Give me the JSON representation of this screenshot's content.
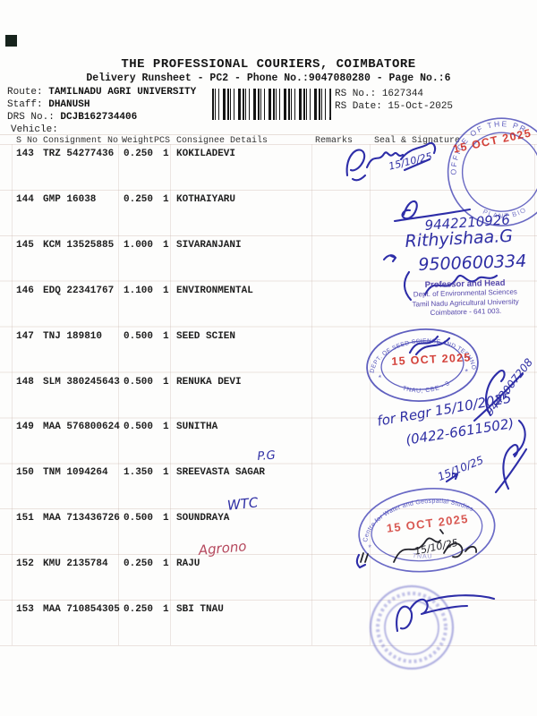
{
  "doc": {
    "title": "THE PROFESSIONAL COURIERS, COIMBATORE",
    "subtitle": "Delivery Runsheet - PC2 - Phone No.:9047080280 - Page No.:6",
    "route_label": "Route:",
    "route": "TAMILNADU AGRI UNIVERSITY",
    "staff_label": "Staff:",
    "staff": "DHANUSH",
    "drs_label": "DRS No.:",
    "drs": "DCJB162734406",
    "vehicle_label": "Vehicle:",
    "rs_no_label": "RS No.:",
    "rs_no": "1627344",
    "rs_date_label": "RS Date:",
    "rs_date": "15-Oct-2025"
  },
  "table": {
    "headers": [
      "S No",
      "Consignment No",
      "Weight",
      "PCS",
      "Consignee Details",
      "Remarks",
      "Seal & Signature"
    ],
    "rows": [
      {
        "s_no": "143",
        "consignment": "TRZ 54277436",
        "weight": "0.250",
        "pcs": "1",
        "consignee": "KOKILADEVI",
        "annotation": ""
      },
      {
        "s_no": "144",
        "consignment": "GMP 16038",
        "weight": "0.250",
        "pcs": "1",
        "consignee": "KOTHAIYARU",
        "annotation": ""
      },
      {
        "s_no": "145",
        "consignment": "KCM 13525885",
        "weight": "1.000",
        "pcs": "1",
        "consignee": "SIVARANJANI",
        "annotation": ""
      },
      {
        "s_no": "146",
        "consignment": "EDQ 22341767",
        "weight": "1.100",
        "pcs": "1",
        "consignee": "ENVIRONMENTAL",
        "annotation": ""
      },
      {
        "s_no": "147",
        "consignment": "TNJ 189810",
        "weight": "0.500",
        "pcs": "1",
        "consignee": "SEED SCIEN",
        "annotation": ""
      },
      {
        "s_no": "148",
        "consignment": "SLM 380245643",
        "weight": "0.500",
        "pcs": "1",
        "consignee": "RENUKA DEVI",
        "annotation": ""
      },
      {
        "s_no": "149",
        "consignment": "MAA 576800624",
        "weight": "0.500",
        "pcs": "1",
        "consignee": "SUNITHA",
        "annotation": ""
      },
      {
        "s_no": "150",
        "consignment": "TNM 1094264",
        "weight": "1.350",
        "pcs": "1",
        "consignee": "SREEVASTA SAGAR",
        "annotation": "P.G"
      },
      {
        "s_no": "151",
        "consignment": "MAA 713436726",
        "weight": "0.500",
        "pcs": "1",
        "consignee": "SOUNDRAYA",
        "annotation": "WTC"
      },
      {
        "s_no": "152",
        "consignment": "KMU 2135784",
        "weight": "0.250",
        "pcs": "1",
        "consignee": "RAJU",
        "annotation": "Agrono"
      },
      {
        "s_no": "153",
        "consignment": "MAA 710854305",
        "weight": "0.250",
        "pcs": "1",
        "consignee": "SBI TNAU",
        "annotation": ""
      }
    ]
  },
  "handwriting": {
    "row143_date": "15/10/25",
    "row145_phone1": "9442210926",
    "row145_name": "Rithyishaa.G",
    "row145_phone2": "9500600334",
    "row148_phone": "9442007208",
    "row149_line1": "for Regr 15/10/2025",
    "row149_line2": "(0422-6611502)",
    "row150_date": "15/10/25",
    "row151_date": "15/10/25"
  },
  "stamps": {
    "date_text": "15 OCT 2025",
    "office": {
      "arc_top": "OFFICE OF THE PR",
      "arc_bottom": "PLANT BIO"
    },
    "professor": {
      "line1": "Professor and Head",
      "line2": "Dept. of Environmental Sciences",
      "line3": "Tamil Nadu Agricultural University",
      "line4": "Coimbatore - 641 003."
    },
    "seed": {
      "arc_top": "DEPT. OF SEED SCIENCE AND TECHNOLOGY",
      "bottom": "TNAU, CBE - 3"
    },
    "water": {
      "arc_top": "Centre for Water and Geospatial Studies",
      "bottom": "TNAU"
    }
  },
  "colors": {
    "ink_blue": "#2d2da8",
    "black_ink": "#23232b",
    "stamp_blue": "#4343b4",
    "stamp_red": "#d03028",
    "stamp_violet": "#4b3da6",
    "magenta_ink": "#b5485d",
    "print": "#1e1e1e"
  }
}
